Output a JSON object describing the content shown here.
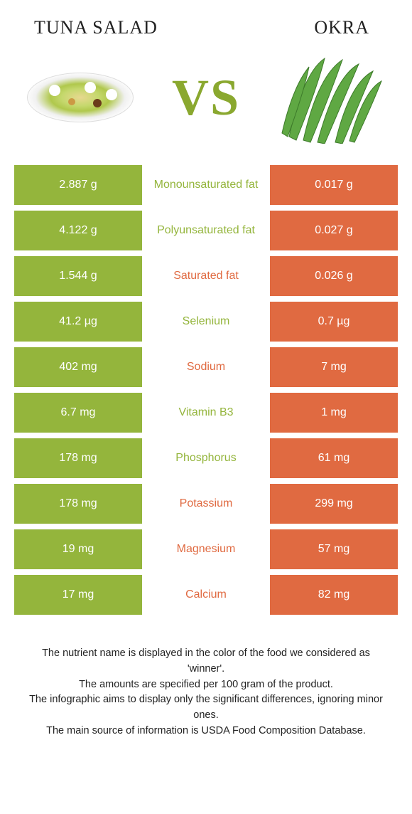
{
  "header": {
    "left_title": "TUNA SALAD",
    "right_title": "OKRA",
    "vs_label": "VS"
  },
  "colors": {
    "green": "#94b53c",
    "orange": "#e06a41",
    "text_dark": "#222222",
    "white": "#ffffff"
  },
  "table": {
    "rows": [
      {
        "nutrient": "Monounsaturated fat",
        "left": "2.887 g",
        "right": "0.017 g",
        "winner": "left"
      },
      {
        "nutrient": "Polyunsaturated fat",
        "left": "4.122 g",
        "right": "0.027 g",
        "winner": "left"
      },
      {
        "nutrient": "Saturated fat",
        "left": "1.544 g",
        "right": "0.026 g",
        "winner": "right"
      },
      {
        "nutrient": "Selenium",
        "left": "41.2 µg",
        "right": "0.7 µg",
        "winner": "left"
      },
      {
        "nutrient": "Sodium",
        "left": "402 mg",
        "right": "7 mg",
        "winner": "right"
      },
      {
        "nutrient": "Vitamin B3",
        "left": "6.7 mg",
        "right": "1 mg",
        "winner": "left"
      },
      {
        "nutrient": "Phosphorus",
        "left": "178 mg",
        "right": "61 mg",
        "winner": "left"
      },
      {
        "nutrient": "Potassium",
        "left": "178 mg",
        "right": "299 mg",
        "winner": "right"
      },
      {
        "nutrient": "Magnesium",
        "left": "19 mg",
        "right": "57 mg",
        "winner": "right"
      },
      {
        "nutrient": "Calcium",
        "left": "17 mg",
        "right": "82 mg",
        "winner": "right"
      }
    ]
  },
  "footer": {
    "line1": "The nutrient name is displayed in the color of the food we considered as 'winner'.",
    "line2": "The amounts are specified per 100 gram of the product.",
    "line3": "The infographic aims to display only the significant differences, ignoring minor ones.",
    "line4": "The main source of information is USDA Food Composition Database."
  }
}
